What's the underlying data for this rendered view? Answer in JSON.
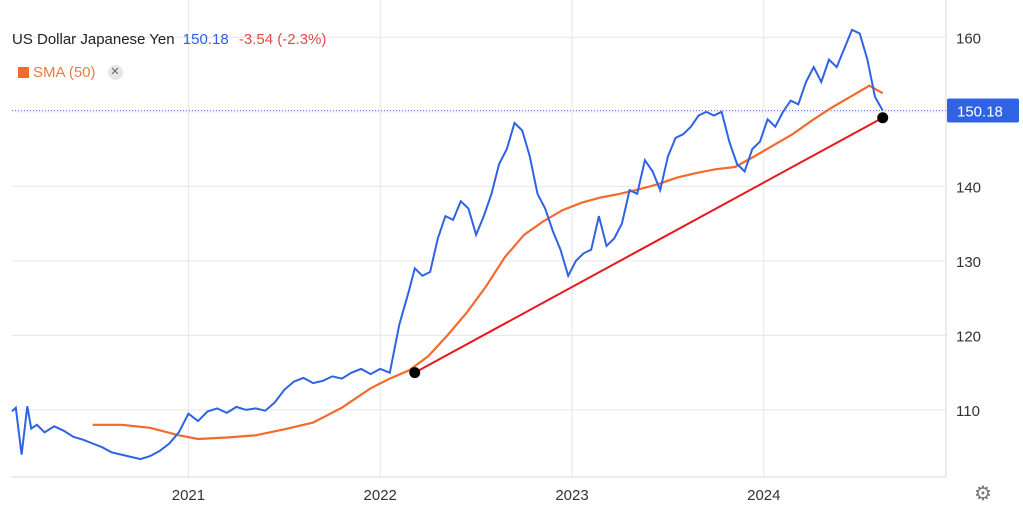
{
  "legend": {
    "title": "US Dollar Japanese Yen",
    "price": "150.18",
    "change": "-3.54 (-2.3%)",
    "sma_label": "SMA (50)",
    "close_symbol": "✕"
  },
  "colors": {
    "price_line": "#2f63e3",
    "sma_line": "#f36b2c",
    "trend_line": "#e8191e",
    "price_tag_bg": "#2f63e3",
    "grid": "#e6e6e6"
  },
  "icons": {
    "settings": "gear-icon"
  },
  "chart_data": {
    "type": "line",
    "title": "US Dollar Japanese Yen",
    "x_ticks": [
      "2021",
      "2022",
      "2023",
      "2024"
    ],
    "x_tick_values": [
      2021.0,
      2022.0,
      2023.0,
      2024.0
    ],
    "xlim": [
      2020.08,
      2024.95
    ],
    "ylim": [
      101,
      165
    ],
    "y_ticks": [
      110,
      120,
      130,
      140,
      150,
      160
    ],
    "grid": true,
    "last_price_label": "150.18",
    "last_price_value": 150.18,
    "series": [
      {
        "name": "US Dollar Japanese Yen",
        "x": [
          2020.08,
          2020.1,
          2020.13,
          2020.16,
          2020.18,
          2020.21,
          2020.25,
          2020.3,
          2020.35,
          2020.4,
          2020.45,
          2020.5,
          2020.55,
          2020.6,
          2020.65,
          2020.7,
          2020.75,
          2020.8,
          2020.85,
          2020.9,
          2020.95,
          2021.0,
          2021.05,
          2021.1,
          2021.15,
          2021.2,
          2021.25,
          2021.3,
          2021.35,
          2021.4,
          2021.45,
          2021.5,
          2021.55,
          2021.6,
          2021.65,
          2021.7,
          2021.75,
          2021.8,
          2021.85,
          2021.9,
          2021.95,
          2022.0,
          2022.05,
          2022.1,
          2022.15,
          2022.18,
          2022.22,
          2022.26,
          2022.3,
          2022.34,
          2022.38,
          2022.42,
          2022.46,
          2022.5,
          2022.54,
          2022.58,
          2022.62,
          2022.66,
          2022.7,
          2022.74,
          2022.78,
          2022.82,
          2022.86,
          2022.9,
          2022.94,
          2022.98,
          2023.02,
          2023.06,
          2023.1,
          2023.14,
          2023.18,
          2023.22,
          2023.26,
          2023.3,
          2023.34,
          2023.38,
          2023.42,
          2023.46,
          2023.5,
          2023.54,
          2023.58,
          2023.62,
          2023.66,
          2023.7,
          2023.74,
          2023.78,
          2023.82,
          2023.86,
          2023.9,
          2023.94,
          2023.98,
          2024.02,
          2024.06,
          2024.1,
          2024.14,
          2024.18,
          2024.22,
          2024.26,
          2024.3,
          2024.34,
          2024.38,
          2024.42,
          2024.46,
          2024.5,
          2024.54,
          2024.58,
          2024.62
        ],
        "values": [
          109.8,
          110.3,
          104.0,
          110.5,
          107.5,
          108.0,
          107.0,
          107.8,
          107.2,
          106.4,
          106.0,
          105.5,
          105.0,
          104.3,
          104.0,
          103.7,
          103.4,
          103.8,
          104.5,
          105.5,
          107.0,
          109.5,
          108.5,
          109.8,
          110.2,
          109.6,
          110.4,
          110.0,
          110.2,
          109.9,
          111.0,
          112.7,
          113.8,
          114.3,
          113.6,
          113.9,
          114.5,
          114.2,
          115.0,
          115.5,
          114.8,
          115.5,
          115.0,
          121.5,
          126.0,
          129.0,
          128.0,
          128.5,
          133.0,
          136.0,
          135.5,
          138.0,
          137.0,
          133.5,
          136.0,
          139.0,
          143.0,
          145.0,
          148.5,
          147.5,
          144.0,
          139.0,
          137.0,
          134.0,
          131.5,
          128.0,
          130.0,
          131.0,
          131.5,
          136.0,
          132.0,
          133.0,
          135.0,
          139.5,
          139.0,
          143.5,
          142.0,
          139.5,
          144.0,
          146.5,
          147.0,
          148.0,
          149.5,
          150.0,
          149.5,
          150.0,
          146.0,
          143.0,
          142.0,
          145.0,
          146.0,
          149.0,
          148.0,
          150.0,
          151.5,
          151.0,
          154.0,
          156.0,
          154.0,
          157.0,
          156.0,
          158.5,
          161.0,
          160.5,
          157.0,
          152.0,
          150.18
        ]
      },
      {
        "name": "SMA (50)",
        "x": [
          2020.5,
          2020.65,
          2020.8,
          2020.95,
          2021.05,
          2021.2,
          2021.35,
          2021.5,
          2021.65,
          2021.8,
          2021.95,
          2022.05,
          2022.15,
          2022.25,
          2022.35,
          2022.45,
          2022.55,
          2022.65,
          2022.75,
          2022.85,
          2022.95,
          2023.05,
          2023.15,
          2023.25,
          2023.35,
          2023.45,
          2023.55,
          2023.65,
          2023.75,
          2023.85,
          2023.95,
          2024.05,
          2024.15,
          2024.25,
          2024.35,
          2024.45,
          2024.55,
          2024.62
        ],
        "values": [
          108.0,
          108.0,
          107.6,
          106.6,
          106.1,
          106.3,
          106.6,
          107.4,
          108.3,
          110.3,
          112.9,
          114.2,
          115.3,
          117.2,
          120.0,
          123.0,
          126.5,
          130.5,
          133.5,
          135.3,
          136.8,
          137.8,
          138.5,
          139.0,
          139.6,
          140.3,
          141.2,
          141.8,
          142.3,
          142.6,
          144.0,
          145.5,
          147.0,
          148.8,
          150.5,
          152.0,
          153.5,
          152.5
        ]
      }
    ],
    "trendline": {
      "x": [
        2022.18,
        2024.62
      ],
      "y": [
        115.0,
        149.2
      ]
    }
  }
}
